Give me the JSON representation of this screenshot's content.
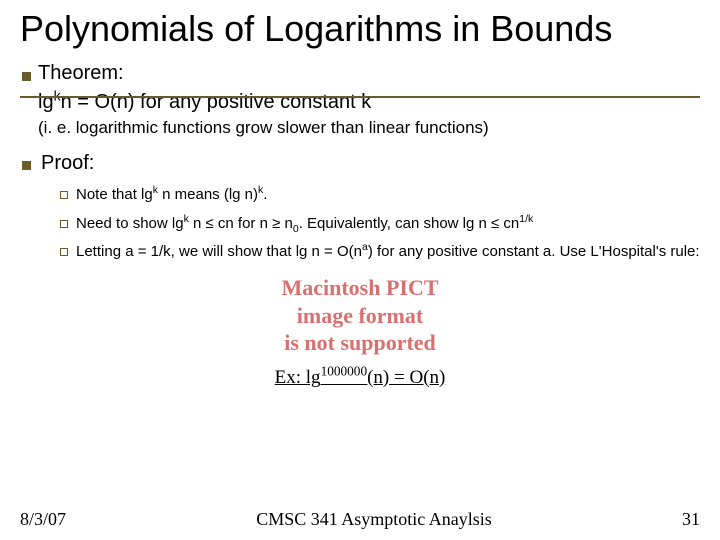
{
  "title": "Polynomials of Logarithms in Bounds",
  "theorem_label": "Theorem:",
  "statement_html": "lg<sup>k</sup>n = O(n) for any positive constant k",
  "note": "(i. e. logarithmic functions grow slower than linear functions)",
  "proof_label": "Proof:",
  "sub1_html": "Note that lg<sup>k</sup> n means (lg n)<sup>k</sup>.",
  "sub2_html": "Need to show lg<sup>k</sup> n ≤ cn for n ≥ n<sub>0</sub>. Equivalently, can show lg n ≤ cn<sup>1/k</sup>",
  "sub3_html": "Letting a = 1/k, we will show that lg n = O(n<sup>a</sup>) for any positive constant a. Use L'Hospital's rule:",
  "pict_lines": [
    "Macintosh PICT",
    "image format",
    "is not supported"
  ],
  "example_html": "Ex: lg<sup>1000000</sup>(n) = O(n)",
  "footer_date": "8/3/07",
  "footer_title": "CMSC 341 Asymptotic Anaylsis",
  "footer_page": "31",
  "colors": {
    "accent": "#6b5b2b",
    "pict": "#d97070",
    "text": "#000000",
    "bg": "#ffffff"
  },
  "fontsizes": {
    "title": 36,
    "body": 20,
    "note": 17,
    "sub": 15,
    "footer": 18,
    "pict": 22,
    "example": 19
  }
}
